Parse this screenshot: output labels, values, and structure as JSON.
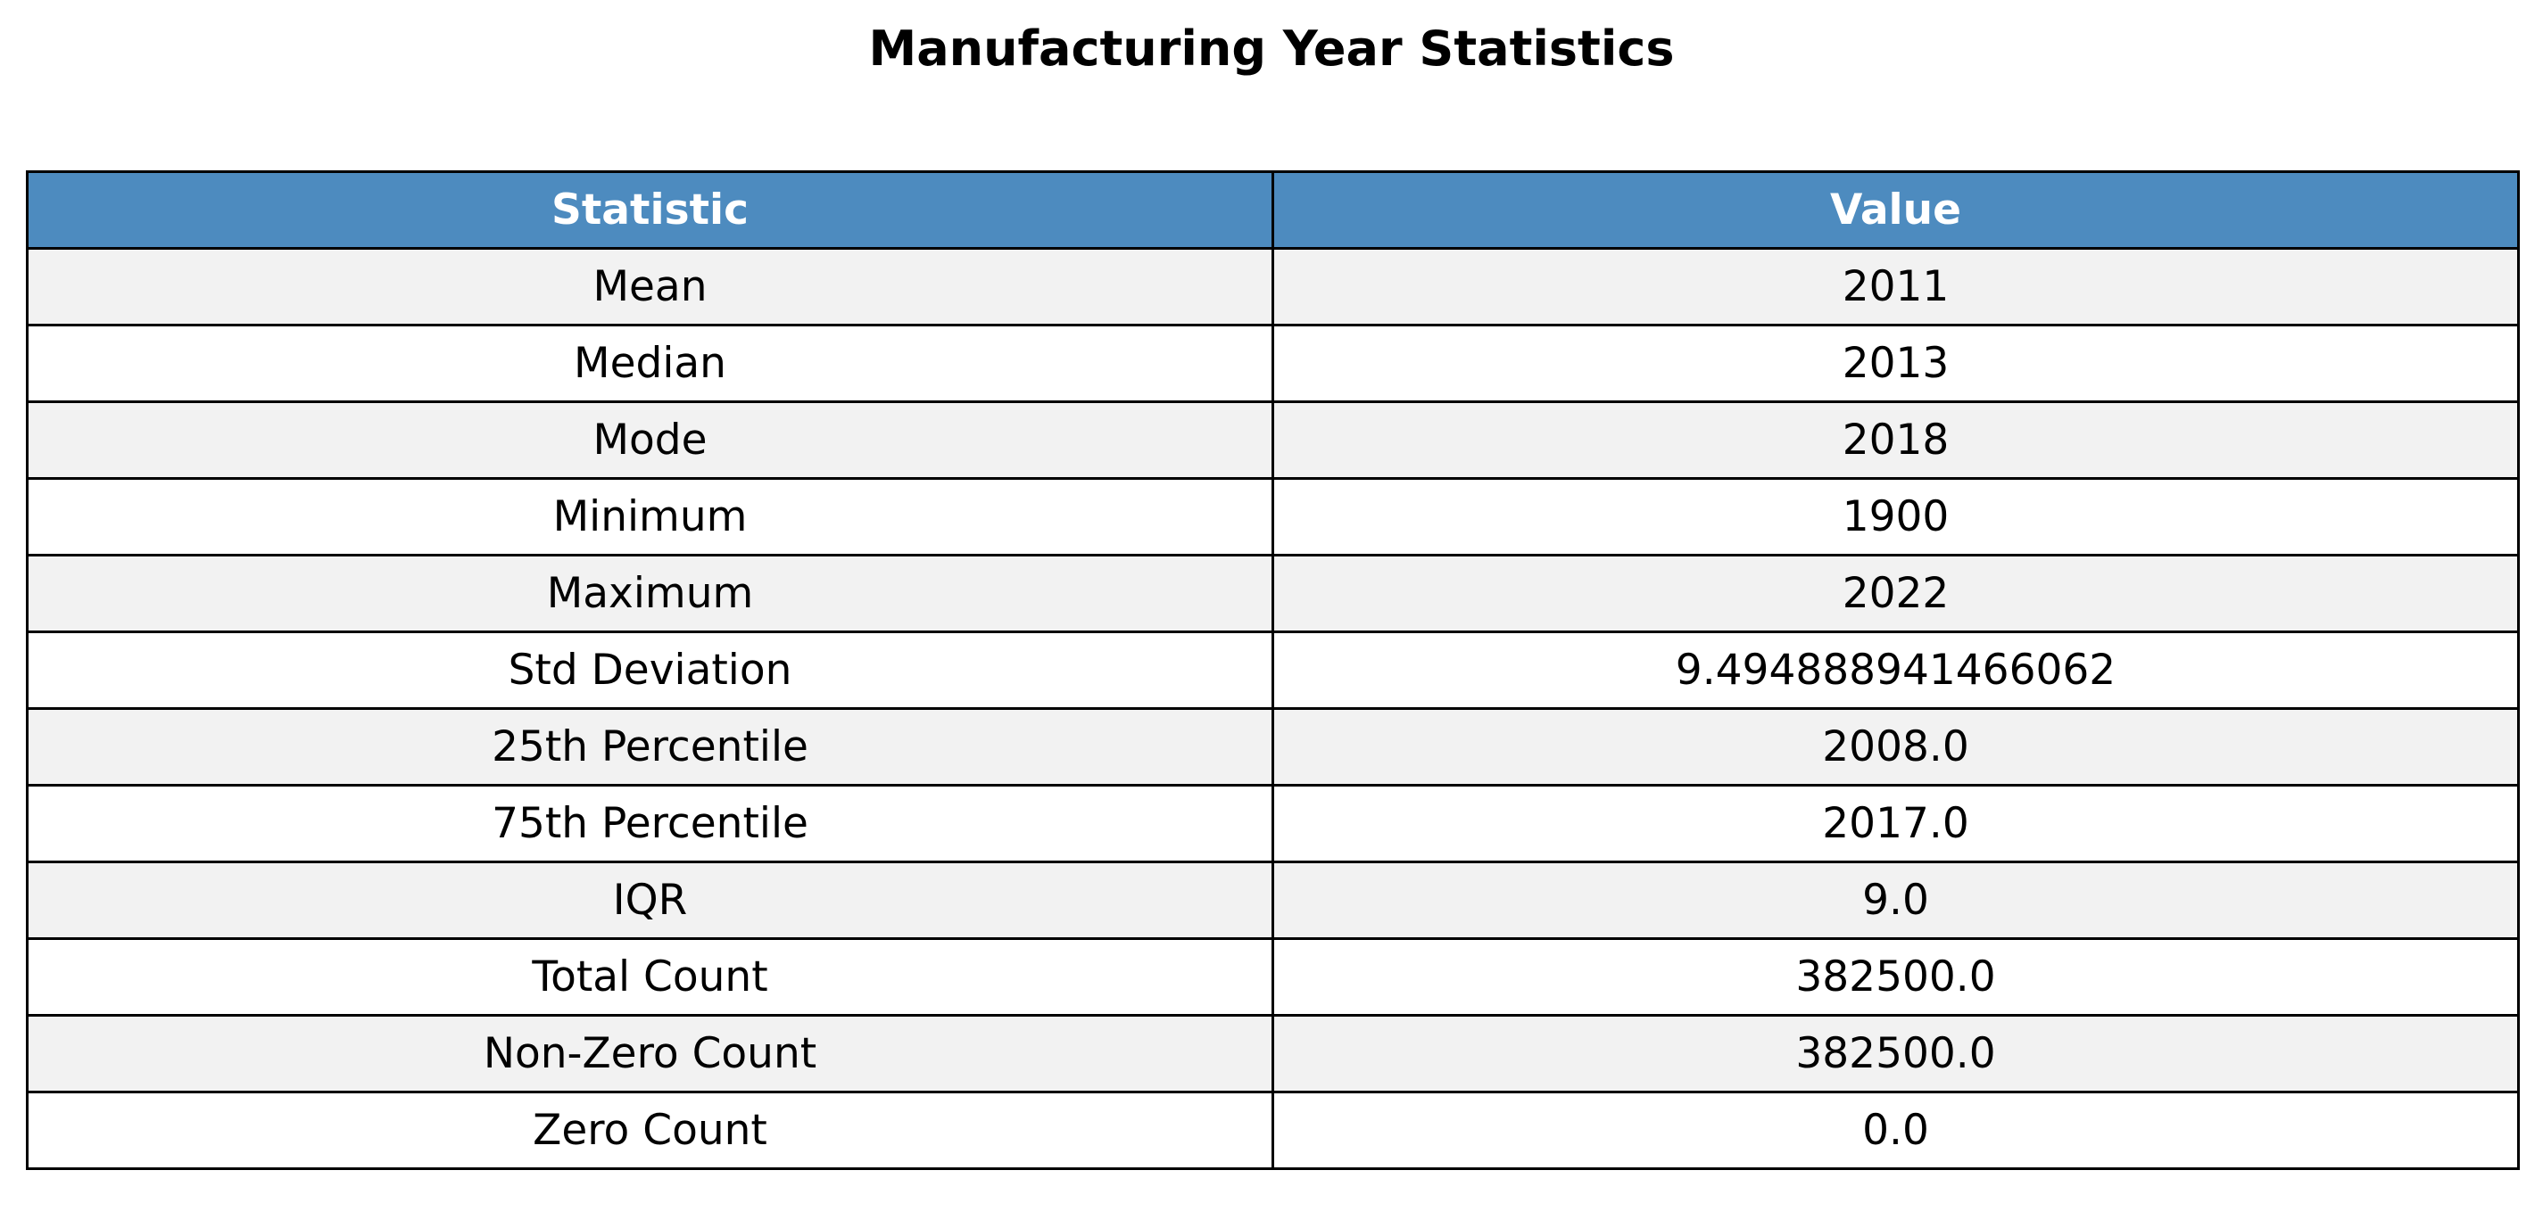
{
  "chart_data": {
    "type": "table",
    "title": "Manufacturing Year Statistics",
    "columns": [
      "Statistic",
      "Value"
    ],
    "rows": [
      [
        "Mean",
        "2011"
      ],
      [
        "Median",
        "2013"
      ],
      [
        "Mode",
        "2018"
      ],
      [
        "Minimum",
        "1900"
      ],
      [
        "Maximum",
        "2022"
      ],
      [
        "Std Deviation",
        "9.494888941466062"
      ],
      [
        "25th Percentile",
        "2008.0"
      ],
      [
        "75th Percentile",
        "2017.0"
      ],
      [
        "IQR",
        "9.0"
      ],
      [
        "Total Count",
        "382500.0"
      ],
      [
        "Non-Zero Count",
        "382500.0"
      ],
      [
        "Zero Count",
        "0.0"
      ]
    ],
    "colors": {
      "header_bg": "#4d8bbf",
      "header_text": "#ffffff",
      "row_alt_bg": "#f2f2f2",
      "row_bg": "#ffffff",
      "border": "#000000"
    }
  }
}
